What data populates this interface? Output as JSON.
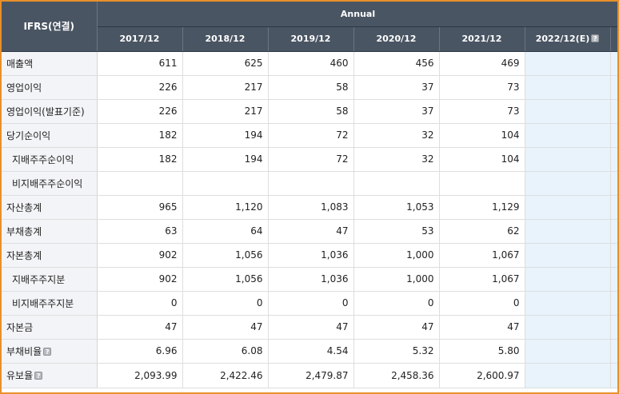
{
  "header": {
    "corner_label": "IFRS(연결)",
    "group_label": "Annual",
    "years": [
      "2017/12",
      "2018/12",
      "2019/12",
      "2020/12",
      "2021/12",
      "2022/12(E)"
    ],
    "help_icon_glyph": "?"
  },
  "rows": [
    {
      "label": "매출액",
      "values": [
        "611",
        "625",
        "460",
        "456",
        "469"
      ]
    },
    {
      "label": "영업이익",
      "values": [
        "226",
        "217",
        "58",
        "37",
        "73"
      ]
    },
    {
      "label": "영업이익(발표기준)",
      "values": [
        "226",
        "217",
        "58",
        "37",
        "73"
      ]
    },
    {
      "label": "당기순이익",
      "values": [
        "182",
        "194",
        "72",
        "32",
        "104"
      ]
    },
    {
      "label": "지배주주순이익",
      "values": [
        "182",
        "194",
        "72",
        "32",
        "104"
      ]
    },
    {
      "label": "비지배주주순이익",
      "values": [
        "",
        "",
        "",
        "",
        ""
      ]
    },
    {
      "label": "자산총계",
      "values": [
        "965",
        "1,120",
        "1,083",
        "1,053",
        "1,129"
      ]
    },
    {
      "label": "부채총계",
      "values": [
        "63",
        "64",
        "47",
        "53",
        "62"
      ]
    },
    {
      "label": "자본총계",
      "values": [
        "902",
        "1,056",
        "1,036",
        "1,000",
        "1,067"
      ]
    },
    {
      "label": "지배주주지분",
      "values": [
        "902",
        "1,056",
        "1,036",
        "1,000",
        "1,067"
      ]
    },
    {
      "label": "비지배주주지분",
      "values": [
        "0",
        "0",
        "0",
        "0",
        "0"
      ]
    },
    {
      "label": "자본금",
      "values": [
        "47",
        "47",
        "47",
        "47",
        "47"
      ]
    },
    {
      "label": "부채비율",
      "values": [
        "6.96",
        "6.08",
        "4.54",
        "5.32",
        "5.80"
      ]
    },
    {
      "label": "유보율",
      "values": [
        "2,093.99",
        "2,422.46",
        "2,479.87",
        "2,458.36",
        "2,600.97"
      ]
    }
  ],
  "colors": {
    "frame_border": "#e8902a",
    "header_bg": "#4a5563",
    "estimate_bg": "#e8f3fb",
    "label_bg": "#f3f4f7"
  }
}
